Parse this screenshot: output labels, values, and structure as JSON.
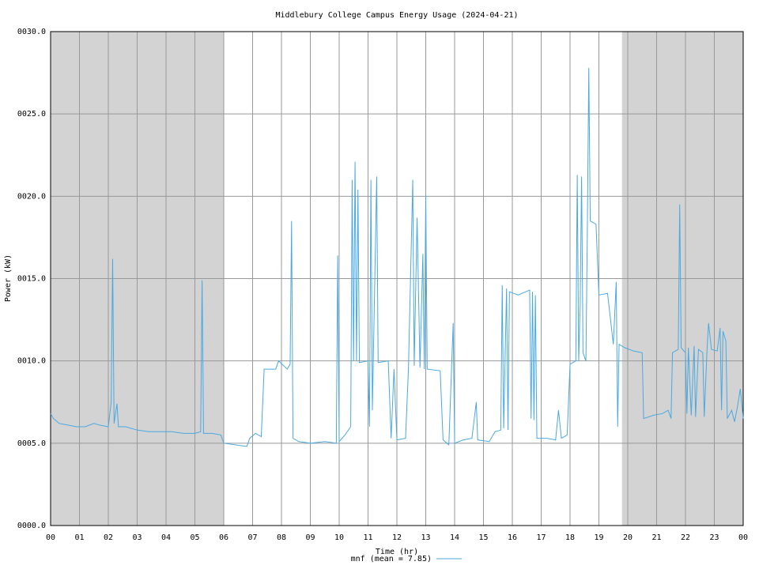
{
  "chart_data": {
    "type": "line",
    "title": "Middlebury College Campus Energy Usage (2024-04-21)",
    "x_label": "Time (hr)",
    "y_label": "Power (kW)",
    "xlim": [
      0,
      24
    ],
    "ylim": [
      0,
      30
    ],
    "grid": true,
    "shade_color": "#d3d3d3",
    "shaded_ranges": [
      [
        0,
        6
      ],
      [
        19.8,
        24
      ]
    ],
    "xticks": [
      {
        "value": 0,
        "label": "00"
      },
      {
        "value": 1,
        "label": "01"
      },
      {
        "value": 2,
        "label": "02"
      },
      {
        "value": 3,
        "label": "03"
      },
      {
        "value": 4,
        "label": "04"
      },
      {
        "value": 5,
        "label": "05"
      },
      {
        "value": 6,
        "label": "06"
      },
      {
        "value": 7,
        "label": "07"
      },
      {
        "value": 8,
        "label": "08"
      },
      {
        "value": 9,
        "label": "09"
      },
      10,
      11,
      12,
      13,
      14,
      15,
      16,
      17,
      18,
      19,
      20,
      21,
      22,
      23,
      {
        "value": 24,
        "label": "00"
      }
    ],
    "yticks": [
      {
        "value": 0,
        "label": "0000.0"
      },
      {
        "value": 5,
        "label": "0005.0"
      },
      {
        "value": 10,
        "label": "0010.0"
      },
      {
        "value": 15,
        "label": "0015.0"
      },
      {
        "value": 20,
        "label": "0020.0"
      },
      {
        "value": 25,
        "label": "0025.0"
      },
      {
        "value": 30,
        "label": "0030.0"
      }
    ],
    "x": [
      0.0,
      0.1,
      0.3,
      0.6,
      0.9,
      1.2,
      1.5,
      1.7,
      2.0,
      2.1,
      2.15,
      2.2,
      2.3,
      2.35,
      2.6,
      3.0,
      3.4,
      3.8,
      4.2,
      4.6,
      5.0,
      5.2,
      5.25,
      5.3,
      5.6,
      5.9,
      6.0,
      6.4,
      6.8,
      6.9,
      7.1,
      7.3,
      7.4,
      7.8,
      7.9,
      8.2,
      8.3,
      8.35,
      8.4,
      8.6,
      9.0,
      9.5,
      9.9,
      9.95,
      10.0,
      10.2,
      10.4,
      10.45,
      10.5,
      10.55,
      10.6,
      10.65,
      10.7,
      11.0,
      11.05,
      11.1,
      11.15,
      11.3,
      11.35,
      11.7,
      11.8,
      11.9,
      12.0,
      12.3,
      12.4,
      12.55,
      12.6,
      12.7,
      12.8,
      12.9,
      12.95,
      13.0,
      13.05,
      13.5,
      13.6,
      13.8,
      13.95,
      14.0,
      14.3,
      14.6,
      14.75,
      14.8,
      15.2,
      15.4,
      15.6,
      15.65,
      15.7,
      15.8,
      15.85,
      15.9,
      16.2,
      16.6,
      16.65,
      16.7,
      16.75,
      16.8,
      16.85,
      17.2,
      17.5,
      17.6,
      17.7,
      17.9,
      18.0,
      18.2,
      18.25,
      18.3,
      18.35,
      18.4,
      18.45,
      18.55,
      18.6,
      18.65,
      18.7,
      18.9,
      19.0,
      19.3,
      19.5,
      19.6,
      19.65,
      19.7,
      19.9,
      20.2,
      20.5,
      20.55,
      20.9,
      21.2,
      21.4,
      21.5,
      21.55,
      21.75,
      21.8,
      21.85,
      22.0,
      22.05,
      22.1,
      22.2,
      22.3,
      22.35,
      22.45,
      22.6,
      22.65,
      22.75,
      22.8,
      22.9,
      23.1,
      23.2,
      23.25,
      23.3,
      23.4,
      23.45,
      23.6,
      23.7,
      23.8,
      23.9,
      24.0
    ],
    "series": [
      {
        "name": "mnf (mean = 7.85)",
        "color": "#4aa8e0",
        "values": [
          6.8,
          6.5,
          6.2,
          6.1,
          6.0,
          6.0,
          6.2,
          6.1,
          6.0,
          7.5,
          16.2,
          6.2,
          7.4,
          6.0,
          6.0,
          5.8,
          5.7,
          5.7,
          5.7,
          5.6,
          5.6,
          5.7,
          14.9,
          5.6,
          5.6,
          5.5,
          5.0,
          4.9,
          4.8,
          5.3,
          5.6,
          5.4,
          9.5,
          9.5,
          10.0,
          9.5,
          9.8,
          18.5,
          5.3,
          5.1,
          5.0,
          5.1,
          5.0,
          16.4,
          5.1,
          5.5,
          6.0,
          21.0,
          10.0,
          22.1,
          10.0,
          20.4,
          9.9,
          10.0,
          6.0,
          21.0,
          7.0,
          21.2,
          9.9,
          10.0,
          5.3,
          9.5,
          5.2,
          5.3,
          9.5,
          21.0,
          9.7,
          18.7,
          9.6,
          16.5,
          9.5,
          20.1,
          9.5,
          9.4,
          5.2,
          4.9,
          12.3,
          5.0,
          5.2,
          5.3,
          7.5,
          5.2,
          5.1,
          5.7,
          5.8,
          14.6,
          5.9,
          14.4,
          5.8,
          14.2,
          14.0,
          14.3,
          6.5,
          14.2,
          6.4,
          14.0,
          5.3,
          5.3,
          5.2,
          7.0,
          5.3,
          5.5,
          9.8,
          10.0,
          21.3,
          10.0,
          13.3,
          21.2,
          10.5,
          10.0,
          18.0,
          27.8,
          18.5,
          18.3,
          14.0,
          14.1,
          11.0,
          14.8,
          6.0,
          11.0,
          10.8,
          10.6,
          10.5,
          6.5,
          6.7,
          6.8,
          7.0,
          6.5,
          10.5,
          10.7,
          19.5,
          10.8,
          10.5,
          6.8,
          10.8,
          6.7,
          10.9,
          6.6,
          10.7,
          10.5,
          6.6,
          10.8,
          12.3,
          10.7,
          10.6,
          12.0,
          7.0,
          11.8,
          11.2,
          6.5,
          7.0,
          6.3,
          7.2,
          8.3,
          6.5
        ]
      }
    ]
  }
}
